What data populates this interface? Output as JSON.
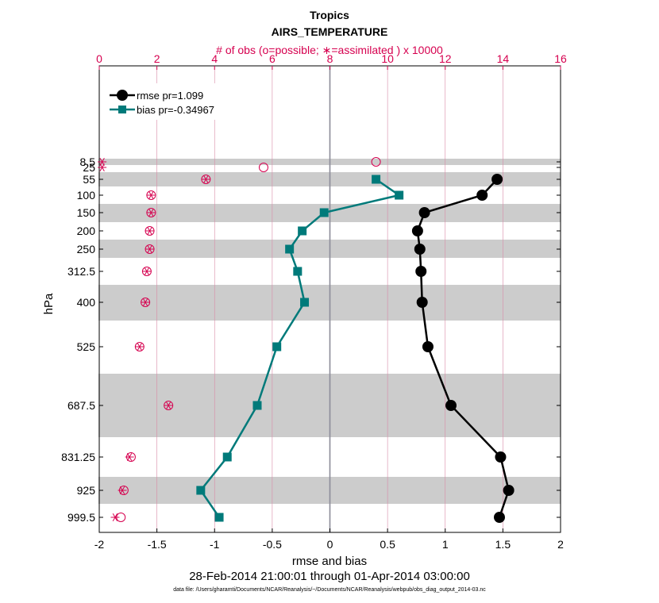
{
  "chart_data": {
    "type": "line",
    "title": "Tropics",
    "subtitle": "AIRS_TEMPERATURE",
    "top_axis_label": "# of obs (o=possible; ∗=assimilated ) x 10000",
    "xlabel": "rmse and bias",
    "ylabel": "hPa",
    "date_range": "28-Feb-2014 21:00:01 through 01-Apr-2014 03:00:00",
    "footnote": "data file: /Users/gharamti/Documents/NCAR/Reanalysis/~/Documents/NCAR/Reanalysis/webpub/obs_diag_output_2014-03.nc",
    "xlim": [
      -2,
      2
    ],
    "x_ticks": [
      "-2",
      "-1.5",
      "-1",
      "-0.5",
      "0",
      "0.5",
      "1",
      "1.5",
      "2"
    ],
    "top_xlim": [
      0,
      16
    ],
    "top_ticks": [
      "0",
      "2",
      "4",
      "6",
      "8",
      "10",
      "12",
      "14",
      "16"
    ],
    "levels": [
      "8.5",
      "25",
      "55",
      "100",
      "150",
      "200",
      "250",
      "312.5",
      "400",
      "525",
      "687.5",
      "831.25",
      "925",
      "999.5"
    ],
    "series": [
      {
        "name": "rmse pr=1.099",
        "color": "#000000",
        "marker": "circle",
        "values": [
          null,
          null,
          1.45,
          1.32,
          0.82,
          0.76,
          0.78,
          0.79,
          0.8,
          0.85,
          1.05,
          1.48,
          1.55,
          1.47
        ]
      },
      {
        "name": "bias pr=-0.34967",
        "color": "#007a7a",
        "marker": "square",
        "values": [
          null,
          null,
          0.4,
          0.6,
          -0.05,
          -0.24,
          -0.35,
          -0.28,
          -0.22,
          -0.46,
          -0.63,
          -0.89,
          -1.12,
          -0.96
        ]
      }
    ],
    "obs_possible": [
      9.6,
      5.7,
      3.7,
      1.8,
      1.8,
      1.75,
      1.75,
      1.65,
      1.6,
      1.4,
      2.4,
      1.1,
      0.85,
      0.75
    ],
    "obs_assimilated": [
      0.1,
      0.1,
      3.7,
      1.8,
      1.8,
      1.75,
      1.75,
      1.65,
      1.6,
      1.4,
      2.4,
      1.05,
      0.8,
      0.55
    ],
    "colors": {
      "rmse": "#000000",
      "bias": "#007a7a",
      "obs": "#d6004f",
      "band": "#cccccc",
      "zero_line": "#8c8c99"
    }
  }
}
